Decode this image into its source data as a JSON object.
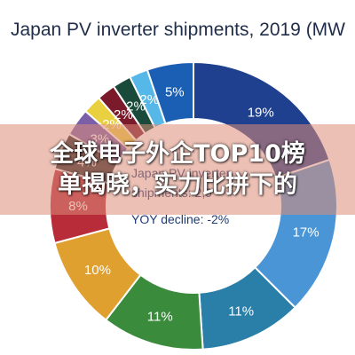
{
  "chart_data": {
    "type": "pie",
    "title": "Japan PV inverter shipments, 2019 (MW",
    "center_lines": [
      "Japan PV inverter",
      "shipments: 2,9",
      "YOY decline: -2%"
    ],
    "slices": [
      {
        "label": "19%",
        "value": 19,
        "color": "#1f3f8f"
      },
      {
        "label": "17%",
        "value": 17,
        "color": "#4a95d6"
      },
      {
        "label": "11%",
        "value": 11,
        "color": "#2a7fa8"
      },
      {
        "label": "11%",
        "value": 11,
        "color": "#3a8c3c"
      },
      {
        "label": "10%",
        "value": 10,
        "color": "#e0a030"
      },
      {
        "label": "8%",
        "value": 8,
        "color": "#b82c3a"
      },
      {
        "label": "4%",
        "value": 4,
        "color": "#2a2a2a"
      },
      {
        "label": "3%",
        "value": 3,
        "color": "#7b5fa8"
      },
      {
        "label": "2%",
        "value": 2,
        "color": "#e8d040"
      },
      {
        "label": "2%",
        "value": 2,
        "color": "#7a1a2a"
      },
      {
        "label": "2%",
        "value": 2,
        "color": "#1a4a3a"
      },
      {
        "label": "2%",
        "value": 2,
        "color": "#56b8e8"
      },
      {
        "label": "5%",
        "value": 5,
        "color": "#1b5fb5"
      }
    ]
  },
  "banner": {
    "line1": "全球电子外企TOP10榜",
    "line2": "单揭晓，实力比拼下的"
  }
}
